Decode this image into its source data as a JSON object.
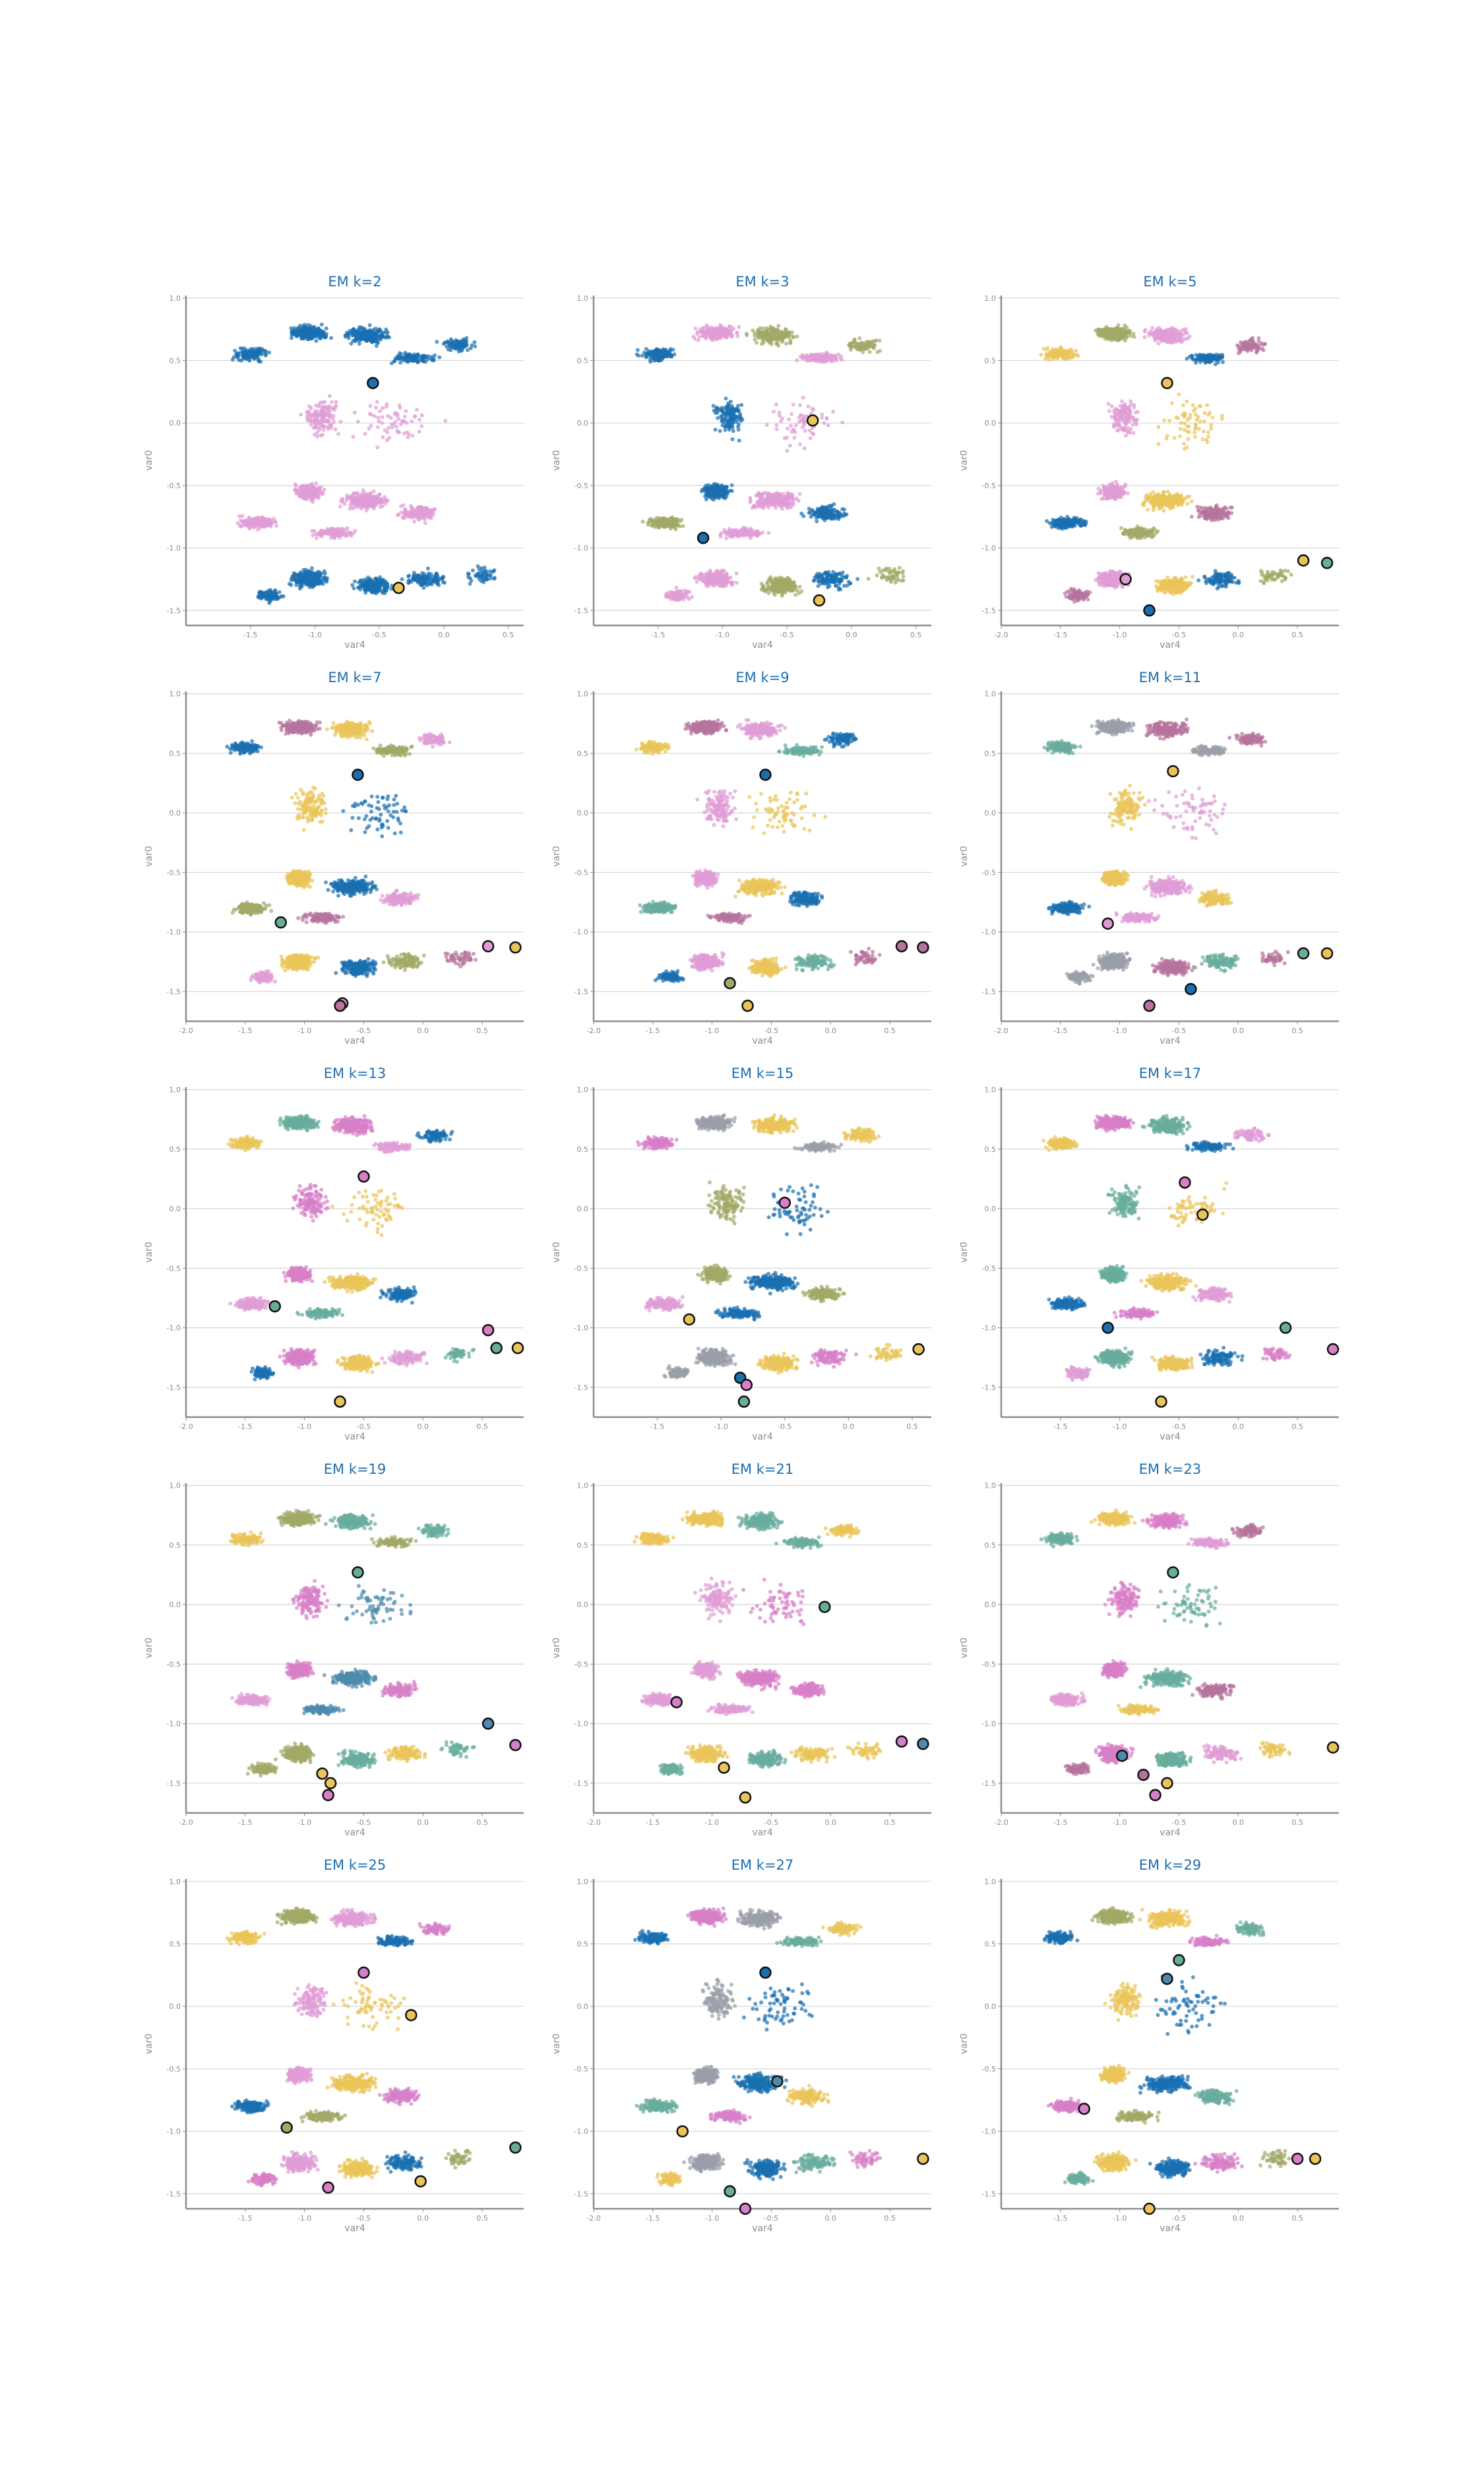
{
  "figure": {
    "background": "#ffffff"
  },
  "palette": [
    "#1a6fb0",
    "#e9c459",
    "#df9dd6",
    "#a3a866",
    "#68ad9c",
    "#b6739d",
    "#4f8aad",
    "#d77fc8",
    "#9a9ea8"
  ],
  "chart_data": [
    {
      "type": "scatter",
      "title": "EM k=2",
      "xlabel": "var4",
      "ylabel": "var0",
      "xlim": [
        -2.0,
        0.62
      ],
      "ylim": [
        -1.62,
        1.02
      ],
      "xticks": [
        -1.5,
        -1.0,
        -0.5,
        0.0,
        0.5
      ],
      "yticks": [
        -1.5,
        -1.0,
        -0.5,
        0.0,
        0.5,
        1.0
      ],
      "grid": "y",
      "clusters": [
        0,
        2
      ],
      "order": [
        2,
        0
      ],
      "centroids": [
        {
          "x": -0.55,
          "y": 0.32,
          "cluster": 0
        },
        {
          "x": -0.35,
          "y": -1.32,
          "cluster": 1
        }
      ]
    },
    {
      "type": "scatter",
      "title": "EM k=3",
      "xlabel": "var4",
      "ylabel": "var0",
      "xlim": [
        -2.0,
        0.62
      ],
      "ylim": [
        -1.62,
        1.02
      ],
      "xticks": [
        -1.5,
        -1.0,
        -0.5,
        0.0,
        0.5
      ],
      "yticks": [
        -1.5,
        -1.0,
        -0.5,
        0.0,
        0.5,
        1.0
      ],
      "grid": "y",
      "clusters": [
        3,
        2,
        0
      ],
      "order": [
        2,
        3,
        0
      ],
      "centroids": [
        {
          "x": -0.3,
          "y": 0.02,
          "cluster": 1
        },
        {
          "x": -1.15,
          "y": -0.92,
          "cluster": 0
        },
        {
          "x": -0.25,
          "y": -1.42,
          "cluster": 1
        }
      ]
    },
    {
      "type": "scatter",
      "title": "EM k=5",
      "xlabel": "var4",
      "ylabel": "var0",
      "xlim": [
        -2.0,
        0.85
      ],
      "ylim": [
        -1.62,
        1.02
      ],
      "xticks": [
        -2.0,
        -1.5,
        -1.0,
        -0.5,
        0.0,
        0.5
      ],
      "yticks": [
        -1.5,
        -1.0,
        -0.5,
        0.0,
        0.5,
        1.0
      ],
      "grid": "y",
      "clusters": [
        5,
        1,
        3,
        0,
        2
      ],
      "order": [
        2,
        3,
        1,
        5,
        0
      ],
      "centroids": [
        {
          "x": -0.6,
          "y": 0.32,
          "cluster": 1
        },
        {
          "x": 0.55,
          "y": -1.1,
          "cluster": 1
        },
        {
          "x": 0.75,
          "y": -1.12,
          "cluster": 4
        },
        {
          "x": -0.95,
          "y": -1.25,
          "cluster": 2
        },
        {
          "x": -0.75,
          "y": -1.5,
          "cluster": 0
        }
      ]
    },
    {
      "type": "scatter",
      "title": "EM k=7",
      "xlabel": "var4",
      "ylabel": "var0",
      "xlim": [
        -2.0,
        0.85
      ],
      "ylim": [
        -1.75,
        1.02
      ],
      "xticks": [
        -2.0,
        -1.5,
        -1.0,
        -0.5,
        0.0,
        0.5
      ],
      "yticks": [
        -1.5,
        -1.0,
        -0.5,
        0.0,
        0.5,
        1.0
      ],
      "grid": "y",
      "clusters": [
        1,
        2,
        0,
        5,
        3
      ],
      "order": [
        2,
        1,
        0,
        3,
        4
      ],
      "centroids": [
        {
          "x": -0.55,
          "y": 0.32,
          "cluster": 0
        },
        {
          "x": -1.2,
          "y": -0.92,
          "cluster": 4
        },
        {
          "x": 0.55,
          "y": -1.12,
          "cluster": 2
        },
        {
          "x": 0.78,
          "y": -1.13,
          "cluster": 1
        },
        {
          "x": -0.68,
          "y": -1.6,
          "cluster": 2
        },
        {
          "x": -0.7,
          "y": -1.62,
          "cluster": 5
        }
      ]
    },
    {
      "type": "scatter",
      "title": "EM k=9",
      "xlabel": "var4",
      "ylabel": "var0",
      "xlim": [
        -2.0,
        0.85
      ],
      "ylim": [
        -1.75,
        1.02
      ],
      "xticks": [
        -2.0,
        -1.5,
        -1.0,
        -0.5,
        0.0,
        0.5
      ],
      "yticks": [
        -1.5,
        -1.0,
        -0.5,
        0.0,
        0.5,
        1.0
      ],
      "grid": "y",
      "clusters": [
        4,
        2,
        0,
        1,
        5
      ],
      "order": [
        2,
        4,
        1,
        0,
        5
      ],
      "centroids": [
        {
          "x": -0.55,
          "y": 0.32,
          "cluster": 0
        },
        {
          "x": 0.6,
          "y": -1.12,
          "cluster": 5
        },
        {
          "x": 0.78,
          "y": -1.13,
          "cluster": 5
        },
        {
          "x": -0.85,
          "y": -1.43,
          "cluster": 3
        },
        {
          "x": -0.7,
          "y": -1.62,
          "cluster": 1
        }
      ]
    },
    {
      "type": "scatter",
      "title": "EM k=11",
      "xlabel": "var4",
      "ylabel": "var0",
      "xlim": [
        -2.0,
        0.85
      ],
      "ylim": [
        -1.75,
        1.02
      ],
      "xticks": [
        -2.0,
        -1.5,
        -1.0,
        -0.5,
        0.0,
        0.5
      ],
      "yticks": [
        -1.5,
        -1.0,
        -0.5,
        0.0,
        0.5,
        1.0
      ],
      "grid": "y",
      "clusters": [
        1,
        5,
        2,
        4,
        0,
        8
      ],
      "order": [
        2,
        1,
        5,
        4,
        0,
        8
      ],
      "centroids": [
        {
          "x": -0.55,
          "y": 0.35,
          "cluster": 1
        },
        {
          "x": -1.1,
          "y": -0.93,
          "cluster": 2
        },
        {
          "x": 0.55,
          "y": -1.18,
          "cluster": 4
        },
        {
          "x": 0.75,
          "y": -1.18,
          "cluster": 1
        },
        {
          "x": -0.4,
          "y": -1.48,
          "cluster": 0
        },
        {
          "x": -0.75,
          "y": -1.62,
          "cluster": 5
        }
      ]
    },
    {
      "type": "scatter",
      "title": "EM k=13",
      "xlabel": "var4",
      "ylabel": "var0",
      "xlim": [
        -2.0,
        0.85
      ],
      "ylim": [
        -1.75,
        1.02
      ],
      "xticks": [
        -2.0,
        -1.5,
        -1.0,
        -0.5,
        0.0,
        0.5
      ],
      "yticks": [
        -1.5,
        -1.0,
        -0.5,
        0.0,
        0.5,
        1.0
      ],
      "grid": "y",
      "clusters": [
        1,
        4,
        2,
        7,
        0
      ],
      "order": [
        2,
        1,
        4,
        7,
        0
      ],
      "centroids": [
        {
          "x": -0.5,
          "y": 0.27,
          "cluster": 7
        },
        {
          "x": -1.25,
          "y": -0.82,
          "cluster": 4
        },
        {
          "x": 0.55,
          "y": -1.02,
          "cluster": 7
        },
        {
          "x": 0.62,
          "y": -1.17,
          "cluster": 4
        },
        {
          "x": 0.8,
          "y": -1.17,
          "cluster": 1
        },
        {
          "x": -0.7,
          "y": -1.62,
          "cluster": 1
        }
      ]
    },
    {
      "type": "scatter",
      "title": "EM k=15",
      "xlabel": "var4",
      "ylabel": "var0",
      "xlim": [
        -2.0,
        0.65
      ],
      "ylim": [
        -1.75,
        1.02
      ],
      "xticks": [
        -1.5,
        -1.0,
        -0.5,
        0.0,
        0.5
      ],
      "yticks": [
        -1.5,
        -1.0,
        -0.5,
        0.0,
        0.5,
        1.0
      ],
      "grid": "y",
      "clusters": [
        2,
        8,
        3,
        1,
        0,
        7
      ],
      "order": [
        2,
        8,
        3,
        1,
        7,
        0
      ],
      "centroids": [
        {
          "x": -0.5,
          "y": 0.05,
          "cluster": 7
        },
        {
          "x": -1.25,
          "y": -0.93,
          "cluster": 1
        },
        {
          "x": -0.85,
          "y": -1.42,
          "cluster": 0
        },
        {
          "x": -0.8,
          "y": -1.48,
          "cluster": 7
        },
        {
          "x": -0.82,
          "y": -1.62,
          "cluster": 4
        },
        {
          "x": 0.55,
          "y": -1.18,
          "cluster": 1
        }
      ]
    },
    {
      "type": "scatter",
      "title": "EM k=17",
      "xlabel": "var4",
      "ylabel": "var0",
      "xlim": [
        -2.0,
        0.85
      ],
      "ylim": [
        -1.75,
        1.02
      ],
      "xticks": [
        -1.5,
        -1.0,
        -0.5,
        0.0,
        0.5
      ],
      "yticks": [
        -1.5,
        -1.0,
        -0.5,
        0.0,
        0.5,
        1.0
      ],
      "grid": "y",
      "clusters": [
        4,
        2,
        1,
        7,
        0
      ],
      "order": [
        4,
        2,
        1,
        7,
        0
      ],
      "centroids": [
        {
          "x": -0.45,
          "y": 0.22,
          "cluster": 7
        },
        {
          "x": -0.3,
          "y": -0.05,
          "cluster": 1
        },
        {
          "x": -1.1,
          "y": -1.0,
          "cluster": 0
        },
        {
          "x": 0.4,
          "y": -1.0,
          "cluster": 4
        },
        {
          "x": 0.8,
          "y": -1.18,
          "cluster": 7
        },
        {
          "x": -0.65,
          "y": -1.62,
          "cluster": 1
        }
      ]
    },
    {
      "type": "scatter",
      "title": "EM k=19",
      "xlabel": "var4",
      "ylabel": "var0",
      "xlim": [
        -2.0,
        0.85
      ],
      "ylim": [
        -1.75,
        1.02
      ],
      "xticks": [
        -2.0,
        -1.5,
        -1.0,
        -0.5,
        0.0,
        0.5
      ],
      "yticks": [
        -1.5,
        -1.0,
        -0.5,
        0.0,
        0.5,
        1.0
      ],
      "grid": "y",
      "clusters": [
        6,
        1,
        2,
        3,
        7,
        4
      ],
      "order": [
        2,
        6,
        1,
        3,
        7,
        4
      ],
      "centroids": [
        {
          "x": -0.55,
          "y": 0.27,
          "cluster": 4
        },
        {
          "x": 0.55,
          "y": -1.0,
          "cluster": 6
        },
        {
          "x": 0.78,
          "y": -1.18,
          "cluster": 7
        },
        {
          "x": -0.85,
          "y": -1.42,
          "cluster": 1
        },
        {
          "x": -0.78,
          "y": -1.5,
          "cluster": 1
        },
        {
          "x": -0.8,
          "y": -1.6,
          "cluster": 7
        }
      ]
    },
    {
      "type": "scatter",
      "title": "EM k=21",
      "xlabel": "var4",
      "ylabel": "var0",
      "xlim": [
        -2.0,
        0.85
      ],
      "ylim": [
        -1.75,
        1.02
      ],
      "xticks": [
        -2.0,
        -1.5,
        -1.0,
        -0.5,
        0.0,
        0.5
      ],
      "yticks": [
        -1.5,
        -1.0,
        -0.5,
        0.0,
        0.5,
        1.0
      ],
      "grid": "y",
      "clusters": [
        4,
        2,
        1,
        7
      ],
      "order": [
        2,
        4,
        1,
        7
      ],
      "centroids": [
        {
          "x": -0.05,
          "y": -0.02,
          "cluster": 4
        },
        {
          "x": -1.3,
          "y": -0.82,
          "cluster": 7
        },
        {
          "x": -0.9,
          "y": -1.37,
          "cluster": 1
        },
        {
          "x": 0.6,
          "y": -1.15,
          "cluster": 7
        },
        {
          "x": 0.78,
          "y": -1.17,
          "cluster": 6
        },
        {
          "x": -0.72,
          "y": -1.62,
          "cluster": 1
        }
      ]
    },
    {
      "type": "scatter",
      "title": "EM k=23",
      "xlabel": "var4",
      "ylabel": "var0",
      "xlim": [
        -2.0,
        0.85
      ],
      "ylim": [
        -1.75,
        1.02
      ],
      "xticks": [
        -2.0,
        -1.5,
        -1.0,
        -0.5,
        0.0,
        0.5
      ],
      "yticks": [
        -1.5,
        -1.0,
        -0.5,
        0.0,
        0.5,
        1.0
      ],
      "grid": "y",
      "clusters": [
        4,
        1,
        2,
        7,
        5
      ],
      "order": [
        4,
        1,
        2,
        7,
        5
      ],
      "centroids": [
        {
          "x": -0.55,
          "y": 0.27,
          "cluster": 4
        },
        {
          "x": -0.98,
          "y": -1.27,
          "cluster": 6
        },
        {
          "x": -0.8,
          "y": -1.43,
          "cluster": 5
        },
        {
          "x": -0.6,
          "y": -1.5,
          "cluster": 1
        },
        {
          "x": -0.7,
          "y": -1.6,
          "cluster": 7
        },
        {
          "x": 0.8,
          "y": -1.2,
          "cluster": 1
        }
      ]
    },
    {
      "type": "scatter",
      "title": "EM k=25",
      "xlabel": "var4",
      "ylabel": "var0",
      "xlim": [
        -2.0,
        0.85
      ],
      "ylim": [
        -1.62,
        1.02
      ],
      "xticks": [
        -1.5,
        -1.0,
        -0.5,
        0.0,
        0.5
      ],
      "yticks": [
        -1.5,
        -1.0,
        -0.5,
        0.0,
        0.5,
        1.0
      ],
      "grid": "y",
      "clusters": [
        7,
        1,
        3,
        0,
        2
      ],
      "order": [
        2,
        7,
        1,
        3,
        0
      ],
      "centroids": [
        {
          "x": -0.5,
          "y": 0.27,
          "cluster": 7
        },
        {
          "x": -0.1,
          "y": -0.07,
          "cluster": 1
        },
        {
          "x": -1.15,
          "y": -0.97,
          "cluster": 3
        },
        {
          "x": 0.78,
          "y": -1.13,
          "cluster": 4
        },
        {
          "x": -0.02,
          "y": -1.4,
          "cluster": 1
        },
        {
          "x": -0.8,
          "y": -1.45,
          "cluster": 7
        }
      ]
    },
    {
      "type": "scatter",
      "title": "EM k=27",
      "xlabel": "var4",
      "ylabel": "var0",
      "xlim": [
        -2.0,
        0.85
      ],
      "ylim": [
        -1.62,
        1.02
      ],
      "xticks": [
        -2.0,
        -1.5,
        -1.0,
        -0.5,
        0.0,
        0.5
      ],
      "yticks": [
        -1.5,
        -1.0,
        -0.5,
        0.0,
        0.5,
        1.0
      ],
      "grid": "y",
      "clusters": [
        8,
        1,
        0,
        7,
        4
      ],
      "order": [
        8,
        1,
        7,
        0,
        4
      ],
      "centroids": [
        {
          "x": -0.55,
          "y": 0.27,
          "cluster": 0
        },
        {
          "x": -0.45,
          "y": -0.6,
          "cluster": 6
        },
        {
          "x": -1.25,
          "y": -1.0,
          "cluster": 1
        },
        {
          "x": 0.78,
          "y": -1.22,
          "cluster": 1
        },
        {
          "x": -0.85,
          "y": -1.48,
          "cluster": 4
        },
        {
          "x": -0.72,
          "y": -1.62,
          "cluster": 7
        }
      ]
    },
    {
      "type": "scatter",
      "title": "EM k=29",
      "xlabel": "var4",
      "ylabel": "var0",
      "xlim": [
        -2.0,
        0.85
      ],
      "ylim": [
        -1.62,
        1.02
      ],
      "xticks": [
        -1.5,
        -1.0,
        -0.5,
        0.0,
        0.5
      ],
      "yticks": [
        -1.5,
        -1.0,
        -0.5,
        0.0,
        0.5,
        1.0
      ],
      "grid": "y",
      "clusters": [
        7,
        1,
        4,
        0,
        3
      ],
      "order": [
        7,
        1,
        4,
        0,
        3
      ],
      "centroids": [
        {
          "x": -0.5,
          "y": 0.37,
          "cluster": 4
        },
        {
          "x": -0.6,
          "y": 0.22,
          "cluster": 6
        },
        {
          "x": -1.3,
          "y": -0.82,
          "cluster": 7
        },
        {
          "x": 0.5,
          "y": -1.22,
          "cluster": 7
        },
        {
          "x": 0.65,
          "y": -1.22,
          "cluster": 1
        },
        {
          "x": -0.75,
          "y": -1.62,
          "cluster": 1
        }
      ]
    }
  ]
}
